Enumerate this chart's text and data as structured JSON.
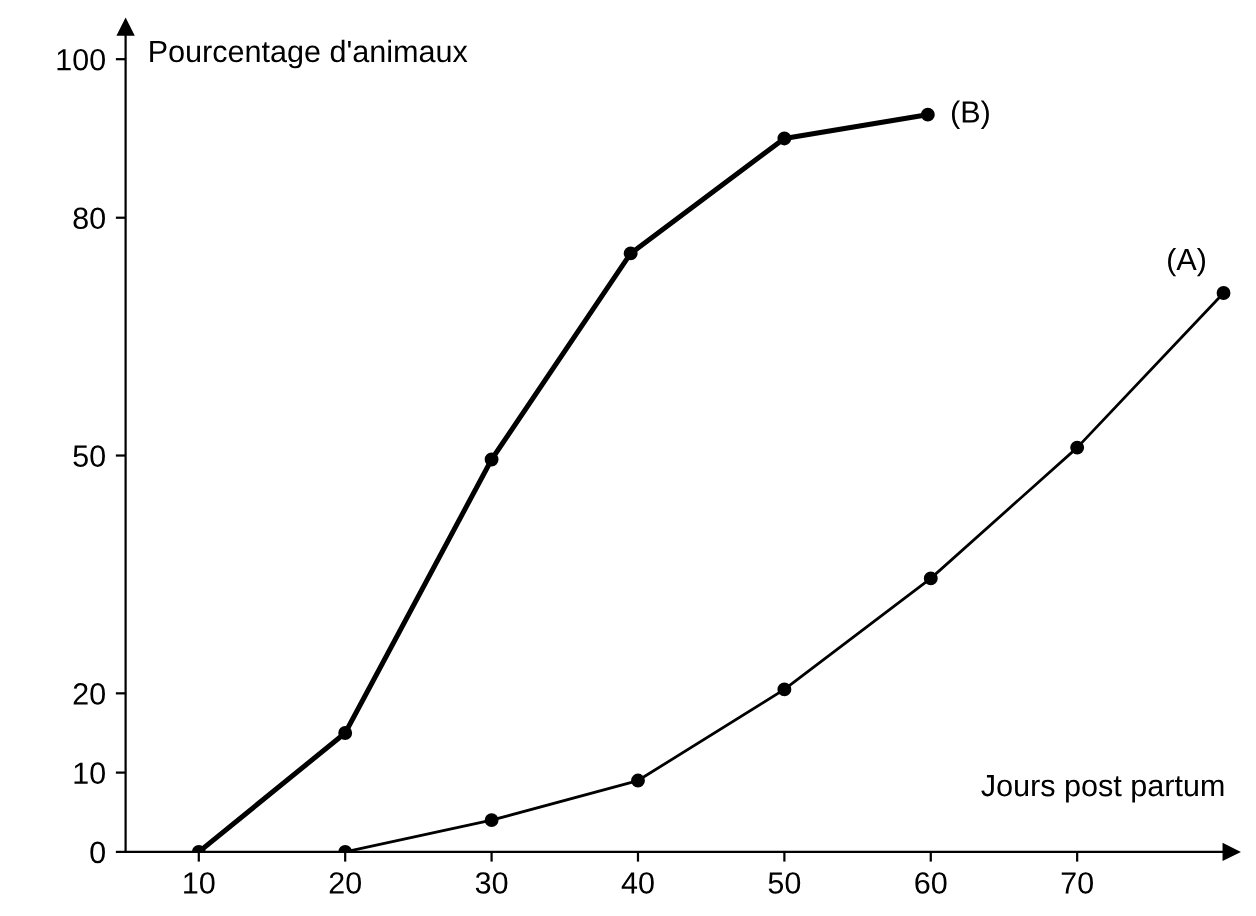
{
  "chart_data": {
    "type": "line",
    "xlabel": "Jours post partum",
    "ylabel": "Pourcentage d'animaux",
    "xlim": [
      5,
      80.5
    ],
    "ylim": [
      0,
      104
    ],
    "xticks": [
      10,
      20,
      30,
      40,
      50,
      60,
      70
    ],
    "yticks": [
      0,
      10,
      20,
      50,
      80,
      100
    ],
    "marker": "circle",
    "line_style": "solid",
    "grid": false,
    "legend": false,
    "series": [
      {
        "name": "(B)",
        "color": "#000000",
        "x": [
          10,
          20,
          30,
          39.5,
          50,
          59.8
        ],
        "values": [
          0,
          15,
          49.5,
          75.5,
          90,
          93
        ]
      },
      {
        "name": "(A)",
        "color": "#000000",
        "x": [
          20,
          30,
          40,
          50,
          60,
          70,
          80
        ],
        "values": [
          0,
          4,
          9,
          20.5,
          34.5,
          51,
          70.5
        ]
      }
    ]
  }
}
